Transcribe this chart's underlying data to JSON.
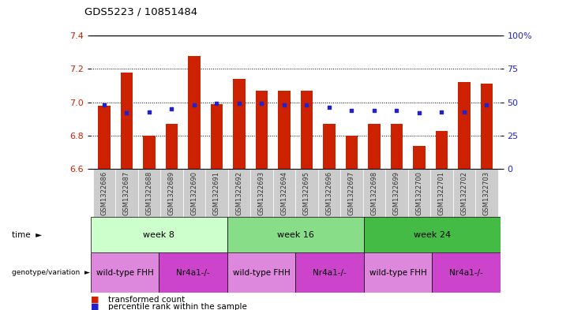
{
  "title": "GDS5223 / 10851484",
  "samples": [
    "GSM1322686",
    "GSM1322687",
    "GSM1322688",
    "GSM1322689",
    "GSM1322690",
    "GSM1322691",
    "GSM1322692",
    "GSM1322693",
    "GSM1322694",
    "GSM1322695",
    "GSM1322696",
    "GSM1322697",
    "GSM1322698",
    "GSM1322699",
    "GSM1322700",
    "GSM1322701",
    "GSM1322702",
    "GSM1322703"
  ],
  "bar_values": [
    6.98,
    7.18,
    6.8,
    6.87,
    7.28,
    6.99,
    7.14,
    7.07,
    7.07,
    7.07,
    6.87,
    6.8,
    6.87,
    6.87,
    6.74,
    6.83,
    7.12,
    7.11
  ],
  "dot_values": [
    48,
    42,
    43,
    45,
    48,
    49,
    49,
    49,
    48,
    48,
    46,
    44,
    44,
    44,
    42,
    43,
    43,
    48
  ],
  "ylim_left": [
    6.6,
    7.4
  ],
  "ylim_right": [
    0,
    100
  ],
  "yticks_left": [
    6.6,
    6.8,
    7.0,
    7.2,
    7.4
  ],
  "yticks_right": [
    0,
    25,
    50,
    75,
    100
  ],
  "ytick_labels_right": [
    "0",
    "25",
    "50",
    "75",
    "100%"
  ],
  "grid_lines": [
    7.2,
    7.0,
    6.8
  ],
  "bar_color": "#cc2200",
  "dot_color": "#2222cc",
  "bar_base": 6.6,
  "time_colors": [
    "#ccffcc",
    "#88dd88",
    "#44bb44"
  ],
  "time_groups": [
    {
      "label": "week 8",
      "start": 0,
      "end": 6
    },
    {
      "label": "week 16",
      "start": 6,
      "end": 12
    },
    {
      "label": "week 24",
      "start": 12,
      "end": 18
    }
  ],
  "genotype_groups": [
    {
      "label": "wild-type FHH",
      "start": 0,
      "end": 3,
      "color": "#dd88dd"
    },
    {
      "label": "Nr4a1-/-",
      "start": 3,
      "end": 6,
      "color": "#cc44cc"
    },
    {
      "label": "wild-type FHH",
      "start": 6,
      "end": 9,
      "color": "#dd88dd"
    },
    {
      "label": "Nr4a1-/-",
      "start": 9,
      "end": 12,
      "color": "#cc44cc"
    },
    {
      "label": "wild-type FHH",
      "start": 12,
      "end": 15,
      "color": "#dd88dd"
    },
    {
      "label": "Nr4a1-/-",
      "start": 15,
      "end": 18,
      "color": "#cc44cc"
    }
  ]
}
